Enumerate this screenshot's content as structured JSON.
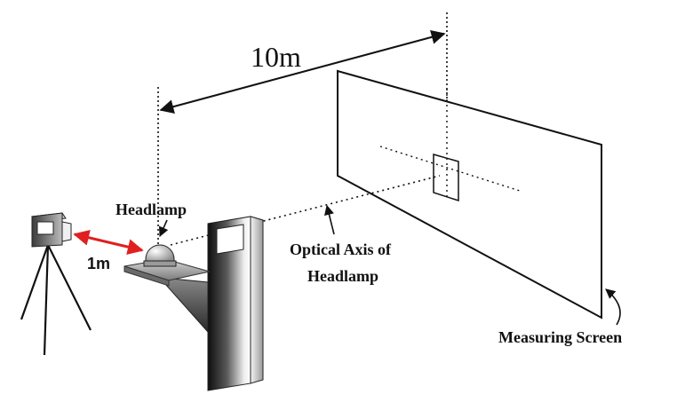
{
  "diagram": {
    "labels": {
      "distance_screen": "10m",
      "distance_camera": "1m",
      "headlamp": "Headlamp",
      "optical_axis_line1": "Optical Axis of",
      "optical_axis_line2": "Headlamp",
      "measuring_screen": "Measuring Screen"
    },
    "colors": {
      "line": "#111111",
      "distance_arrow_red": "#e02020",
      "pillar_dark": "#2a2a2a",
      "pillar_light": "#f4f4f4",
      "background": "#ffffff"
    }
  }
}
